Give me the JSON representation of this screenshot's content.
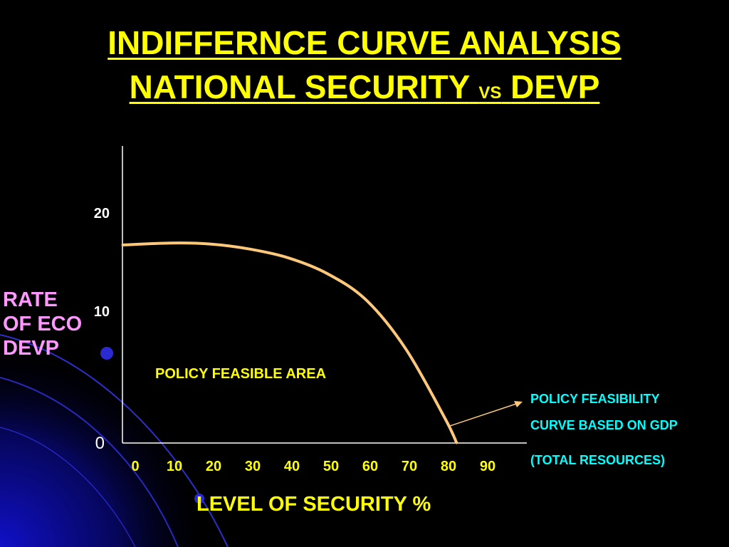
{
  "title": {
    "line1": "INDIFFERNCE CURVE ANALYSIS",
    "line2_left": "NATIONAL SECURITY",
    "line2_vs": "VS",
    "line2_right": "DEVP"
  },
  "colors": {
    "title": "#ffff00",
    "ylabel": "#ff99ff",
    "curve": "#ffc87a",
    "annotation": "#00ffff",
    "axis": "#ffffff"
  },
  "chart_data": {
    "type": "line",
    "ylabel": "RATE OF ECO DEVP",
    "ylabel_lines": [
      "RATE",
      "OF ECO",
      "DEVP"
    ],
    "xlabel": "LEVEL OF SECURITY %",
    "x_ticks": [
      "0",
      "10",
      "20",
      "30",
      "40",
      "50",
      "60",
      "70",
      "80",
      "90"
    ],
    "y_ticks": [
      "0",
      "10",
      "20"
    ],
    "xlim": [
      0,
      100
    ],
    "ylim": [
      0,
      25
    ],
    "series": [
      {
        "values": [
          {
            "x": 0,
            "y": 20
          },
          {
            "x": 10,
            "y": 20.2
          },
          {
            "x": 20,
            "y": 20.1
          },
          {
            "x": 30,
            "y": 19.6
          },
          {
            "x": 40,
            "y": 18.7
          },
          {
            "x": 50,
            "y": 17.1
          },
          {
            "x": 60,
            "y": 14.4
          },
          {
            "x": 70,
            "y": 9.5
          },
          {
            "x": 80,
            "y": 2.5
          },
          {
            "x": 83,
            "y": 0
          }
        ]
      }
    ],
    "annotations": {
      "area": "POLICY FEASIBLE AREA",
      "curve_line1": "POLICY FEASIBILITY",
      "curve_line2": "CURVE BASED ON GDP",
      "curve_line3": "(TOTAL RESOURCES)"
    },
    "grid": false
  }
}
